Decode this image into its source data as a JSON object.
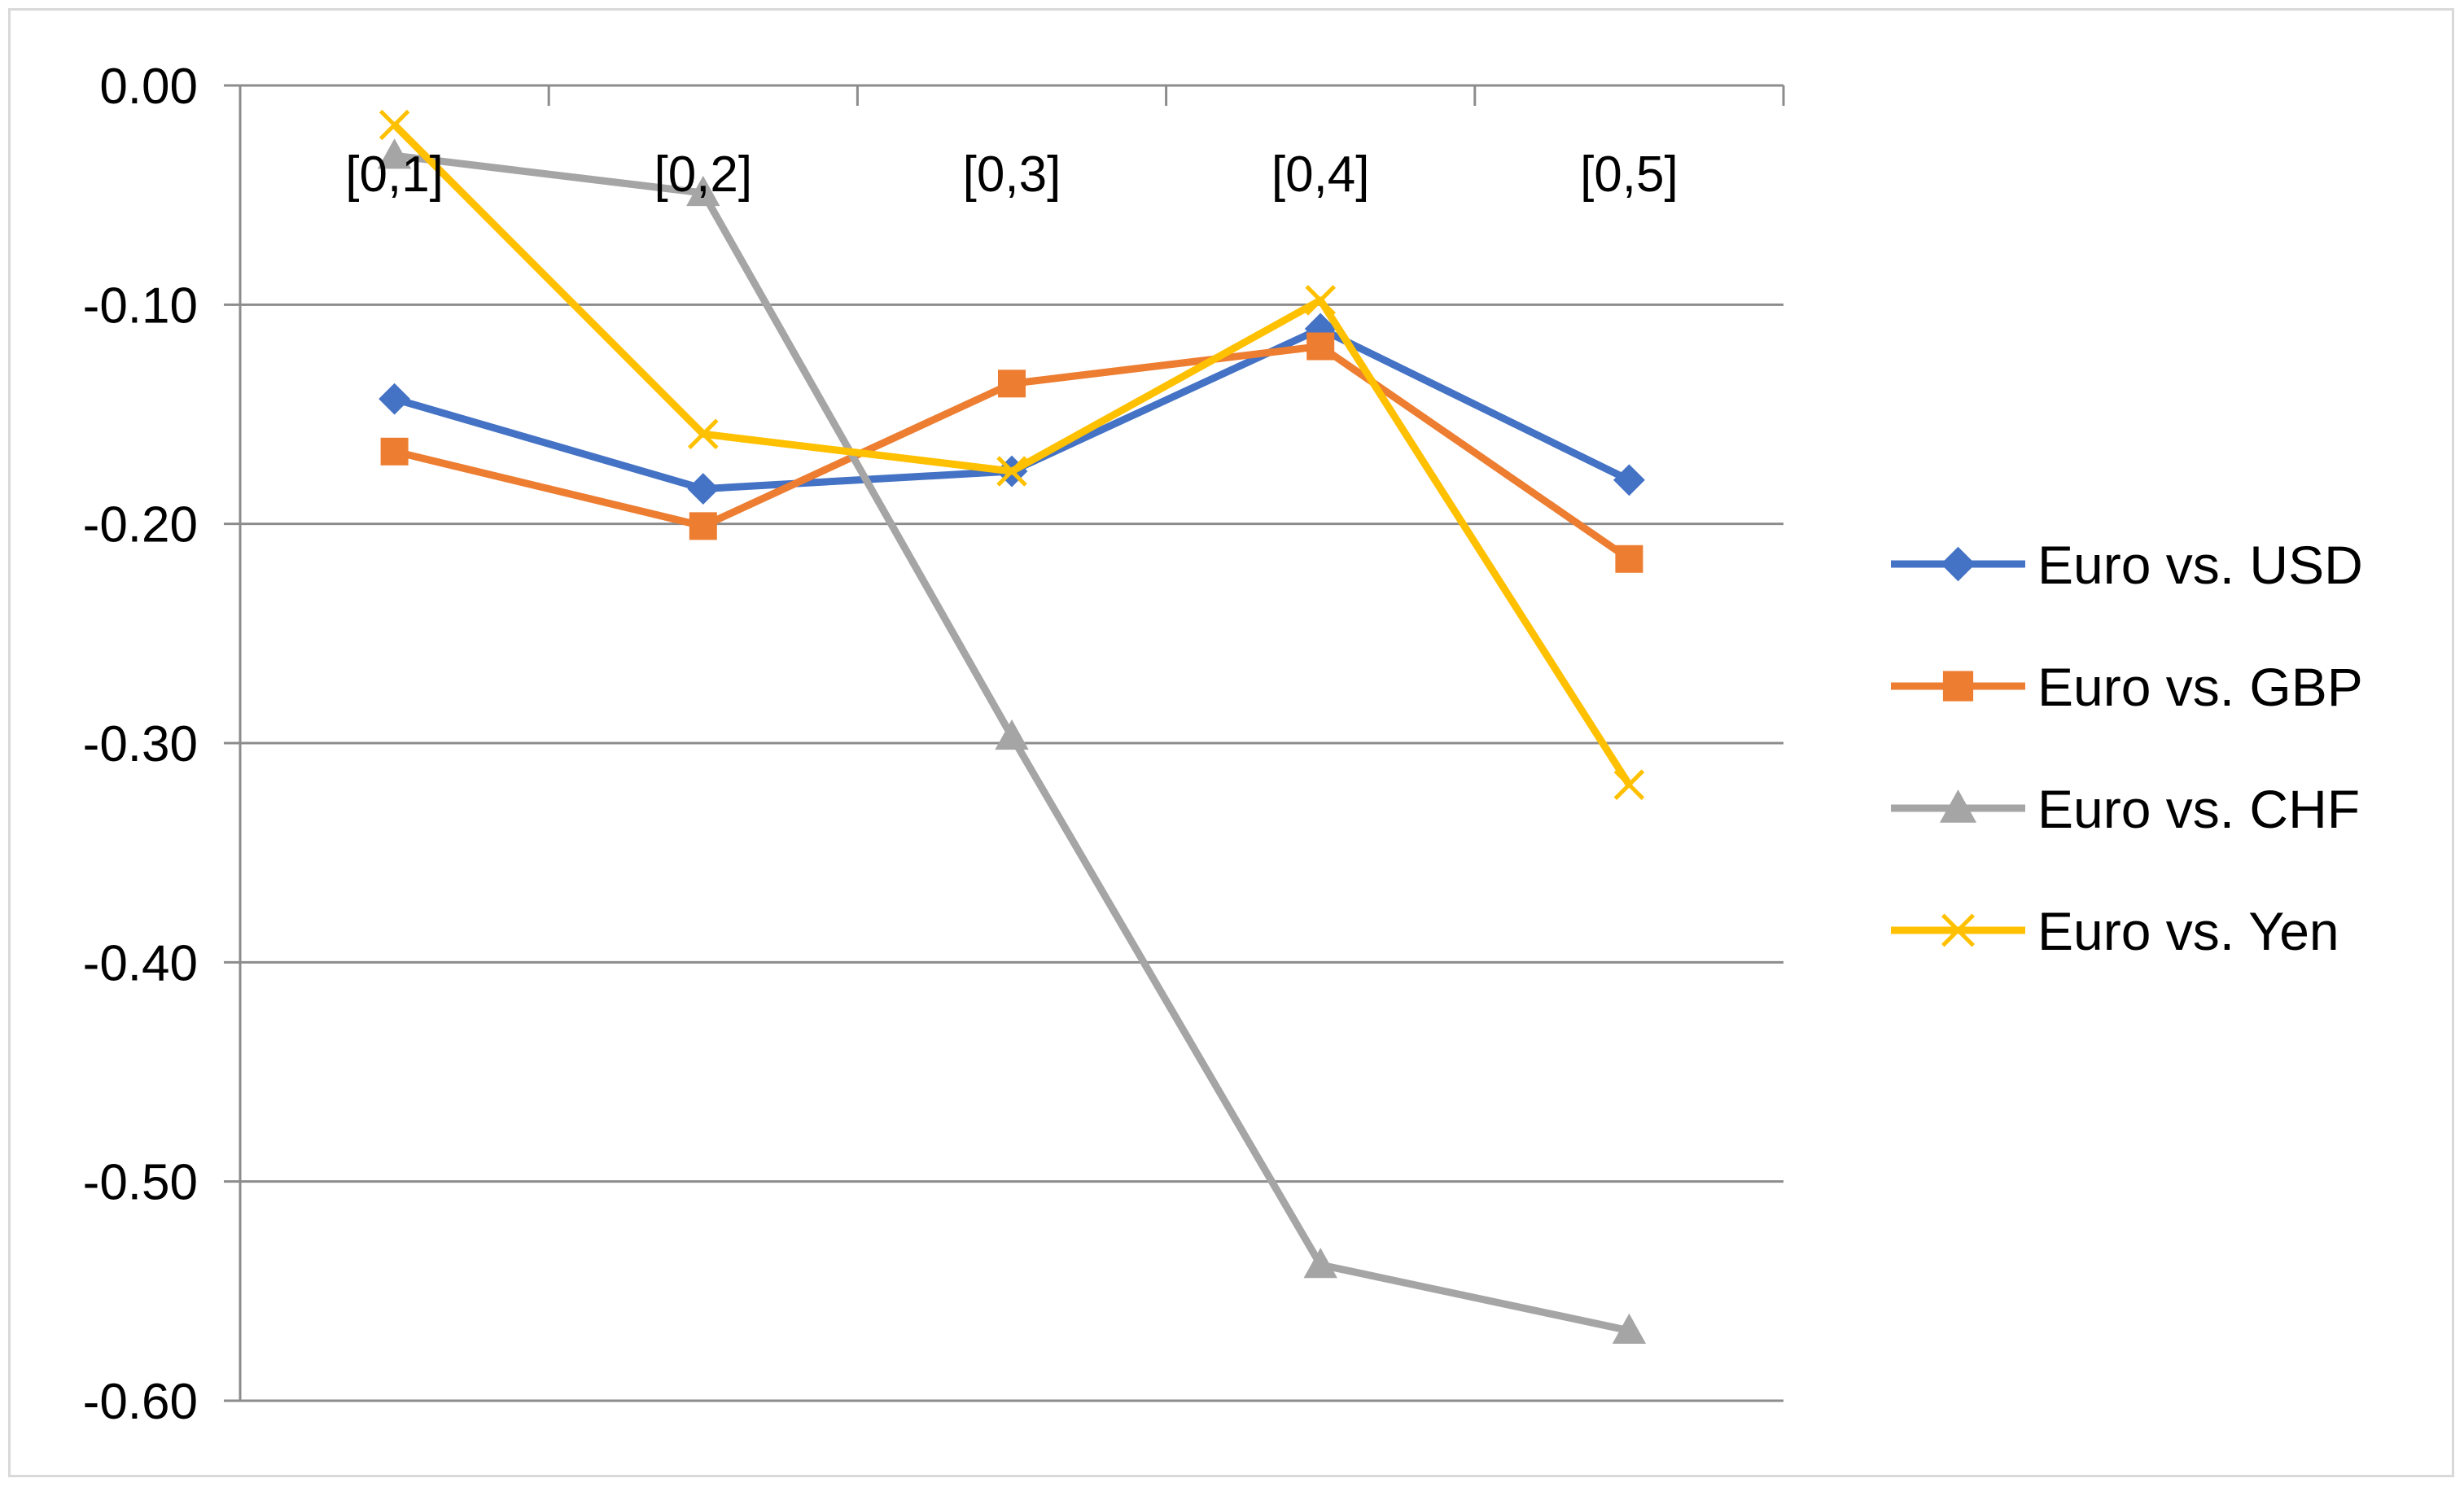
{
  "chart_data": {
    "type": "line",
    "title": "",
    "xlabel": "",
    "ylabel": "",
    "categories": [
      "[0,1]",
      "[0,2]",
      "[0,3]",
      "[0,4]",
      "[0,5]"
    ],
    "ylim": [
      -0.6,
      0.0
    ],
    "yticks": [
      0.0,
      -0.1,
      -0.2,
      -0.3,
      -0.4,
      -0.5,
      -0.6
    ],
    "ytick_labels": [
      "0.00",
      "-0.10",
      "-0.20",
      "-0.30",
      "-0.40",
      "-0.50",
      "-0.60"
    ],
    "grid": true,
    "legend_position": "right",
    "series": [
      {
        "name": "Euro vs. USD",
        "color": "#4472C4",
        "marker": "diamond",
        "values": [
          -0.143,
          -0.184,
          -0.176,
          -0.111,
          -0.18
        ]
      },
      {
        "name": "Euro vs. GBP",
        "color": "#ED7D31",
        "marker": "square",
        "values": [
          -0.167,
          -0.201,
          -0.136,
          -0.119,
          -0.216
        ]
      },
      {
        "name": "Euro vs. CHF",
        "color": "#A5A5A5",
        "marker": "triangle",
        "values": [
          -0.032,
          -0.049,
          -0.297,
          -0.538,
          -0.568
        ]
      },
      {
        "name": "Euro vs. Yen",
        "color": "#FFC000",
        "marker": "x",
        "values": [
          -0.018,
          -0.159,
          -0.176,
          -0.098,
          -0.319
        ]
      }
    ]
  }
}
